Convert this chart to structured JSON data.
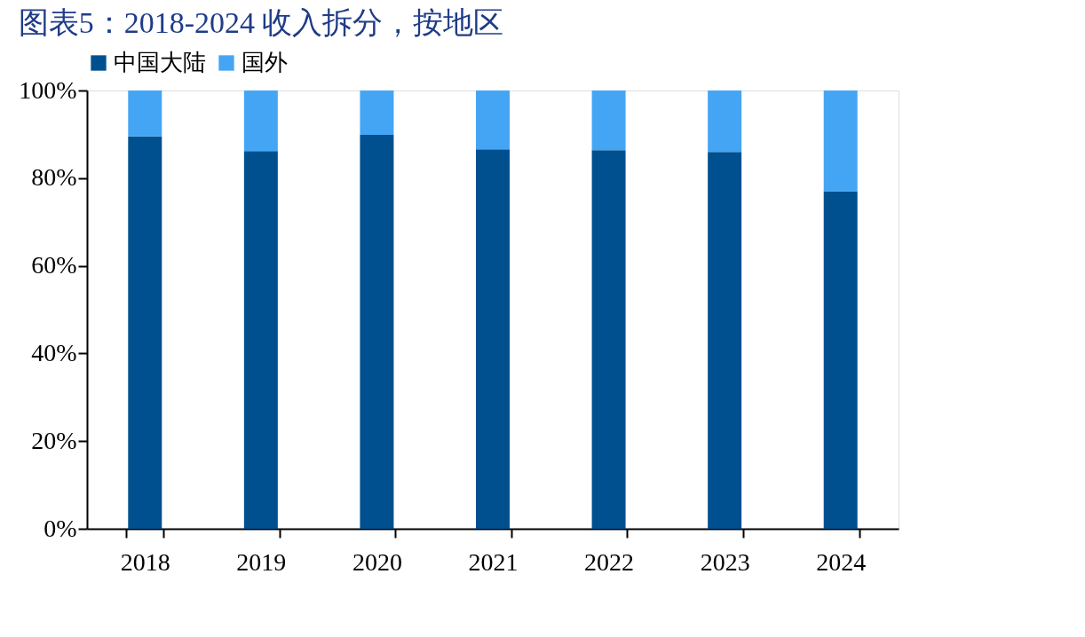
{
  "chart_data": {
    "type": "bar",
    "title": "图表5：2018-2024 收入拆分，按地区",
    "categories": [
      "2018",
      "2019",
      "2020",
      "2021",
      "2022",
      "2023",
      "2024"
    ],
    "stacked": true,
    "series": [
      {
        "name": "中国大陆",
        "color": "#00508f",
        "values": [
          89.5,
          86.2,
          89.9,
          86.6,
          86.4,
          86.0,
          77.0
        ]
      },
      {
        "name": "国外",
        "color": "#45a5f5",
        "values": [
          10.5,
          13.8,
          10.1,
          13.4,
          13.6,
          14.0,
          23.0
        ]
      }
    ],
    "ylim": [
      0,
      100
    ],
    "yticks": [
      {
        "value": 0,
        "label": "0%"
      },
      {
        "value": 20,
        "label": "20%"
      },
      {
        "value": 40,
        "label": "40%"
      },
      {
        "value": 60,
        "label": "60%"
      },
      {
        "value": 80,
        "label": "80%"
      },
      {
        "value": 100,
        "label": "100%"
      }
    ],
    "grid": false,
    "legend": "top"
  }
}
